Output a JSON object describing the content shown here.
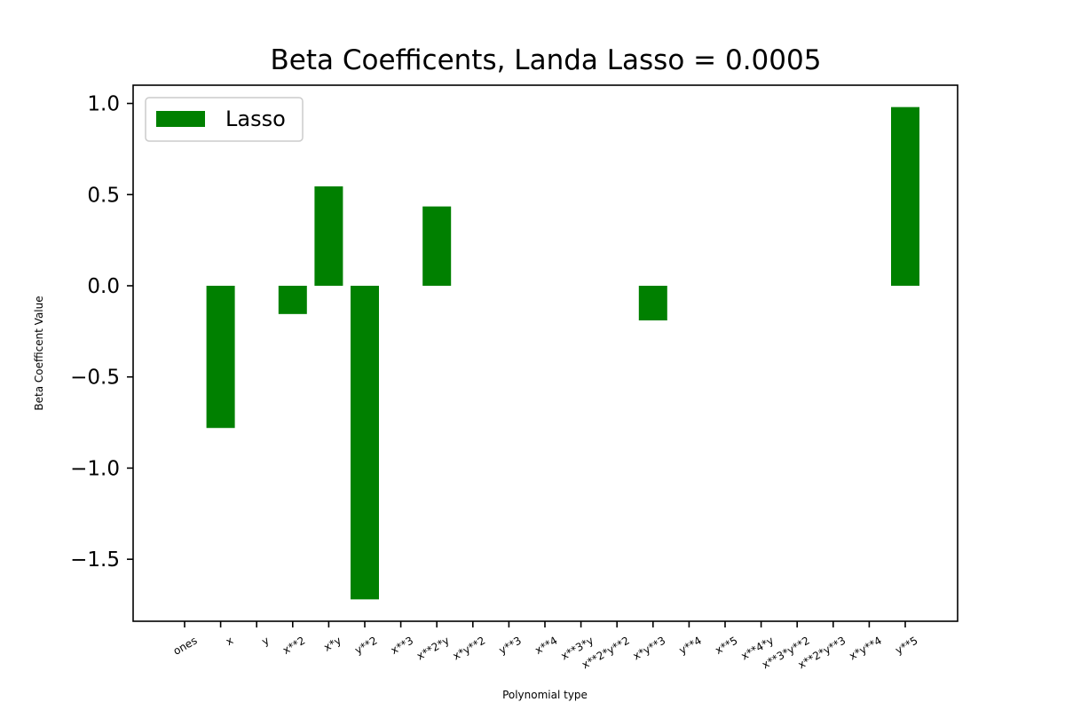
{
  "chart_data": {
    "type": "bar",
    "title": "Beta Coefficents, Landa Lasso = 0.0005",
    "xlabel": "Polynomial type",
    "ylabel": "Beta Coefficent Value",
    "categories": [
      "ones",
      "x",
      "y",
      "x**2",
      "x*y",
      "y**2",
      "x**3",
      "x**2*y",
      "x*y**2",
      "y**3",
      "x**4",
      "x**3*y",
      "x**2*y**2",
      "x*y**3",
      "y**4",
      "x**5",
      "x**4*y",
      "x**3*y**2",
      "x**2*y**3",
      "x*y**4",
      "y**5"
    ],
    "series": [
      {
        "name": "Lasso",
        "color": "#008000",
        "values": [
          0.0,
          -0.78,
          0.0,
          -0.155,
          0.545,
          -1.72,
          0.0,
          0.435,
          0.0,
          0.0,
          0.0,
          0.0,
          0.0,
          -0.19,
          0.0,
          0.0,
          0.0,
          0.0,
          0.0,
          0.0,
          0.98
        ]
      }
    ],
    "ylim": [
      -1.84,
      1.1
    ],
    "yticks": [
      1.0,
      0.5,
      0.0,
      -0.5,
      -1.0,
      -1.5
    ],
    "ytick_labels": [
      "1.0",
      "0.5",
      "0.0",
      "−0.5",
      "−1.0",
      "−1.5"
    ],
    "grid": false,
    "legend_placement": "top-left"
  }
}
